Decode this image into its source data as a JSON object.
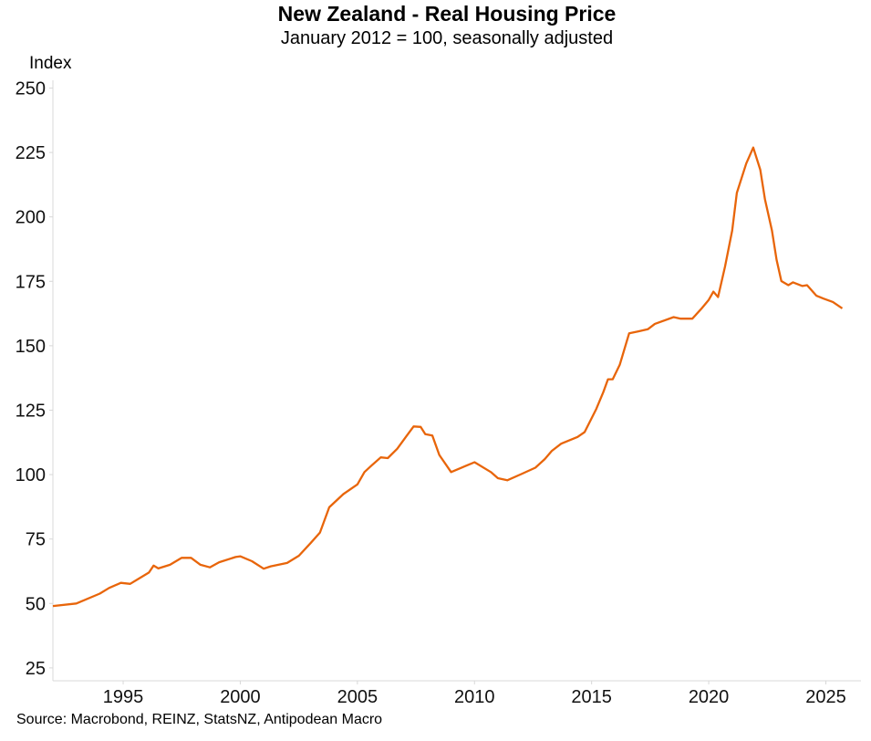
{
  "chart_data": {
    "type": "line",
    "title": "New Zealand - Real Housing Price",
    "subtitle": "January 2012 = 100, seasonally adjusted",
    "ylabel": "Index",
    "xlabel": "",
    "source": "Source: Macrobond, REINZ, StatsNZ, Antipodean Macro",
    "ylim": [
      20,
      253
    ],
    "xlim": [
      1992.0,
      2026.5
    ],
    "yticks": [
      25,
      50,
      75,
      100,
      125,
      150,
      175,
      200,
      225,
      250
    ],
    "xticks": [
      1995,
      2000,
      2005,
      2010,
      2015,
      2020,
      2025
    ],
    "grid": false,
    "series": [
      {
        "name": "Real Housing Price",
        "color": "#E8650A",
        "x": [
          1992.0,
          1993.0,
          1994.0,
          1994.4,
          1994.9,
          1995.3,
          1996.1,
          1996.3,
          1996.5,
          1997.0,
          1997.5,
          1997.9,
          1998.3,
          1998.7,
          1999.1,
          1999.8,
          2000.0,
          2000.5,
          2001.0,
          2001.3,
          2002.0,
          2002.5,
          2003.0,
          2003.4,
          2003.8,
          2004.4,
          2005.0,
          2005.3,
          2005.6,
          2006.0,
          2006.3,
          2006.7,
          2007.1,
          2007.4,
          2007.7,
          2007.9,
          2008.2,
          2008.5,
          2009.0,
          2010.0,
          2010.7,
          2011.0,
          2011.4,
          2012.0,
          2012.6,
          2013.0,
          2013.3,
          2013.7,
          2014.4,
          2014.7,
          2015.2,
          2015.5,
          2015.7,
          2015.9,
          2016.2,
          2016.6,
          2017.0,
          2017.4,
          2017.7,
          2018.5,
          2018.8,
          2019.3,
          2019.7,
          2020.0,
          2020.2,
          2020.4,
          2020.7,
          2021.0,
          2021.2,
          2021.6,
          2021.9,
          2022.2,
          2022.4,
          2022.7,
          2022.9,
          2023.1,
          2023.4,
          2023.6,
          2024.0,
          2024.2,
          2024.6,
          2024.9,
          2025.3,
          2025.7
        ],
        "values": [
          49.0,
          50.0,
          53.8,
          56.0,
          58.0,
          57.6,
          62.0,
          64.7,
          63.6,
          65.0,
          67.7,
          67.7,
          65.0,
          64.0,
          66.0,
          68.0,
          68.3,
          66.4,
          63.5,
          64.4,
          65.7,
          68.5,
          73.4,
          77.5,
          87.3,
          92.4,
          96.2,
          101.0,
          103.5,
          106.7,
          106.4,
          110.0,
          115.0,
          118.7,
          118.5,
          115.7,
          115.2,
          107.6,
          101.0,
          104.8,
          101.0,
          98.6,
          97.8,
          100.2,
          102.7,
          106.0,
          109.2,
          112.0,
          114.6,
          116.5,
          125.5,
          132.0,
          137.0,
          137.0,
          142.6,
          154.8,
          155.6,
          156.4,
          158.5,
          161.1,
          160.5,
          160.5,
          164.5,
          167.8,
          171.0,
          168.9,
          180.8,
          194.7,
          209.3,
          220.7,
          226.9,
          218.3,
          206.9,
          194.7,
          183.3,
          175.1,
          173.5,
          174.6,
          173.2,
          173.5,
          169.4,
          168.3,
          167.0,
          164.5
        ]
      }
    ]
  }
}
